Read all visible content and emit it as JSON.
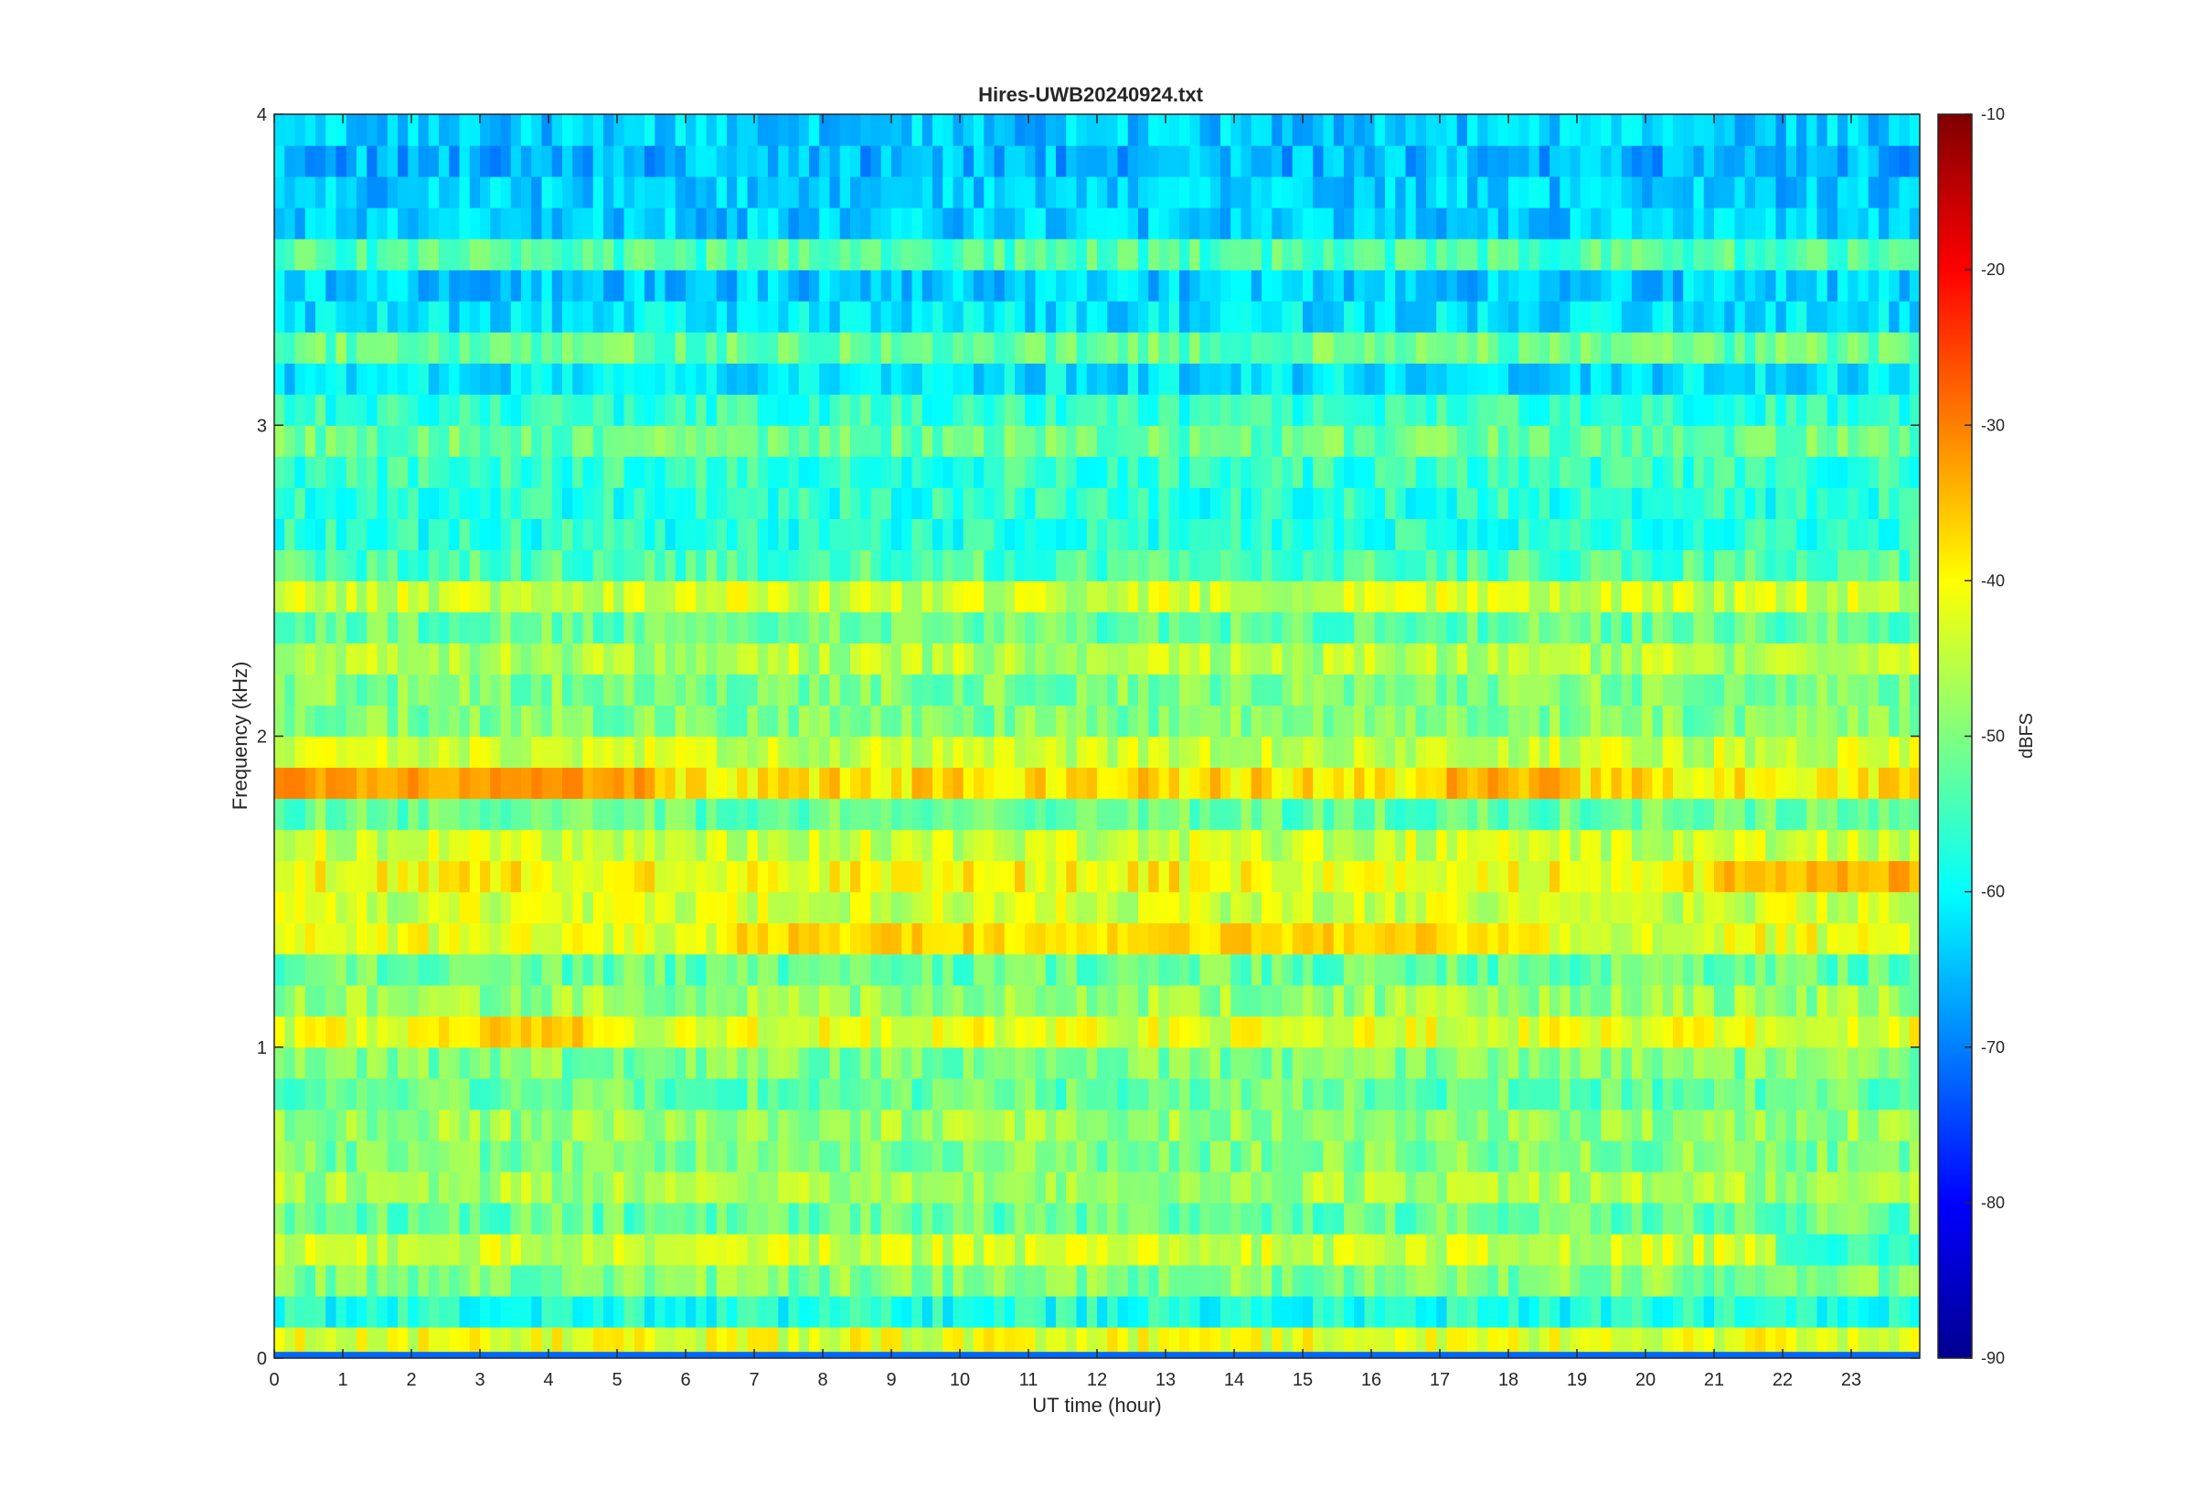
{
  "chart_data": {
    "type": "heatmap",
    "title": "Hires-UWB20240924.txt",
    "xlabel": "UT time (hour)",
    "ylabel": "Frequency (kHz)",
    "colorbar_label": "dBFS",
    "xlim": [
      0,
      24
    ],
    "ylim": [
      0,
      4
    ],
    "clim": [
      -90,
      -10
    ],
    "colormap": "jet",
    "x_ticks": [
      "0",
      "1",
      "2",
      "3",
      "4",
      "5",
      "6",
      "7",
      "8",
      "9",
      "10",
      "11",
      "12",
      "13",
      "14",
      "15",
      "16",
      "17",
      "18",
      "19",
      "20",
      "21",
      "22",
      "23"
    ],
    "y_ticks": [
      "0",
      "1",
      "2",
      "3",
      "4"
    ],
    "colorbar_ticks": [
      "-90",
      "-80",
      "-70",
      "-60",
      "-50",
      "-40",
      "-30",
      "-20",
      "-10"
    ],
    "x_tick_values": [
      0,
      1,
      2,
      3,
      4,
      5,
      6,
      7,
      8,
      9,
      10,
      11,
      12,
      13,
      14,
      15,
      16,
      17,
      18,
      19,
      20,
      21,
      22,
      23
    ],
    "y_tick_values": [
      0,
      1,
      2,
      3,
      4
    ],
    "colorbar_tick_values": [
      -90,
      -80,
      -70,
      -60,
      -50,
      -40,
      -30,
      -20,
      -10
    ],
    "grid": false,
    "frequency_bands_kHz": [
      0.05,
      0.15,
      0.25,
      0.35,
      0.45,
      0.55,
      0.65,
      0.75,
      0.85,
      0.95,
      1.05,
      1.15,
      1.25,
      1.35,
      1.45,
      1.55,
      1.65,
      1.75,
      1.85,
      1.95,
      2.05,
      2.15,
      2.25,
      2.35,
      2.45,
      2.55,
      2.65,
      2.75,
      2.85,
      2.95,
      3.05,
      3.15,
      3.25,
      3.35,
      3.45,
      3.55,
      3.65,
      3.75,
      3.85,
      3.95
    ],
    "band_level_dBFS": [
      -42,
      -58,
      -50,
      -44,
      -52,
      -47,
      -50,
      -48,
      -52,
      -50,
      -42,
      -48,
      -52,
      -42,
      -44,
      -40,
      -44,
      -52,
      -38,
      -44,
      -50,
      -50,
      -46,
      -52,
      -44,
      -54,
      -57,
      -57,
      -56,
      -52,
      -56,
      -62,
      -52,
      -62,
      -64,
      -54,
      -64,
      -64,
      -66,
      -64
    ],
    "time_variation": [
      {
        "hours": [
          0,
          5.5
        ],
        "frequency_kHz": [
          1.8,
          1.9
        ],
        "level_dBFS": -32
      },
      {
        "hours": [
          17,
          19
        ],
        "frequency_kHz": [
          1.8,
          1.9
        ],
        "level_dBFS": -34
      },
      {
        "hours": [
          6.5,
          18.5
        ],
        "frequency_kHz": [
          1.3,
          1.4
        ],
        "level_dBFS": -37
      },
      {
        "hours": [
          21,
          24
        ],
        "frequency_kHz": [
          1.5,
          1.6
        ],
        "level_dBFS": -34
      },
      {
        "hours": [
          2,
          4.5
        ],
        "frequency_kHz": [
          1.0,
          1.1
        ],
        "level_dBFS": -37
      },
      {
        "hours": [
          21.8,
          24
        ],
        "frequency_kHz": [
          0.3,
          0.4
        ],
        "level_dBFS": -56
      },
      {
        "hours": [
          0,
          24
        ],
        "frequency_kHz": [
          0.0,
          0.02
        ],
        "level_dBFS": -72
      }
    ]
  }
}
